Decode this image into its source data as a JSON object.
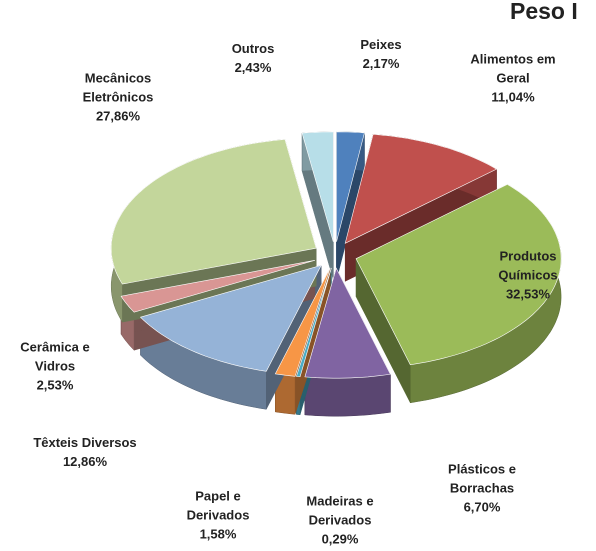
{
  "chart_data": {
    "type": "pie3d",
    "title": "Peso I",
    "categories": [
      "Peixes",
      "Alimentos em Geral",
      "Produtos Químicos",
      "Plásticos e Borrachas",
      "Madeiras e Derivados",
      "Papel e Derivados",
      "Têxteis Diversos",
      "Cerâmica e Vidros",
      "Mecânicos Eletrônicos",
      "Outros"
    ],
    "values": [
      2.17,
      11.04,
      32.53,
      6.7,
      0.29,
      1.58,
      12.86,
      2.53,
      27.86,
      2.43
    ],
    "value_labels": [
      "2,17%",
      "11,04%",
      "32,53%",
      "6,70%",
      "0,29%",
      "1,58%",
      "12,86%",
      "2,53%",
      "27,86%",
      "2,43%"
    ],
    "colors": [
      "#4f81bd",
      "#c0504d",
      "#9bbb59",
      "#8064a2",
      "#4bacc6",
      "#f79646",
      "#95b3d7",
      "#d99694",
      "#c3d69b",
      "#b7dee8"
    ]
  }
}
